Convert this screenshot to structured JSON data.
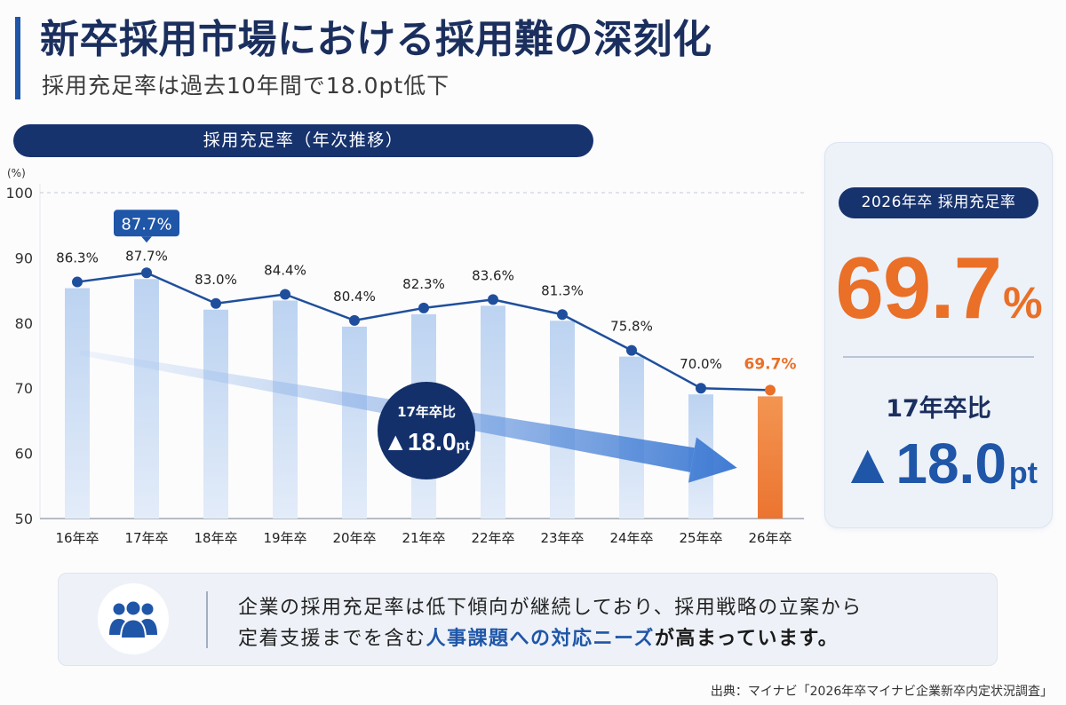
{
  "header": {
    "title": "新卒採用市場における採用難の深刻化",
    "subtitle": "採用充足率は過去10年間で18.0pt低下"
  },
  "chart_data": {
    "type": "bar",
    "overlay": "line",
    "title": "採用充足率（年次推移）",
    "ylabel": "(%)",
    "unit": "%",
    "ylim": [
      50,
      100
    ],
    "yticks": [
      50,
      60,
      70,
      80,
      90,
      100
    ],
    "reference_line": 100,
    "grid": false,
    "legend": "none",
    "categories": [
      "16年卒",
      "17年卒",
      "18年卒",
      "19年卒",
      "20年卒",
      "21年卒",
      "22年卒",
      "23年卒",
      "24年卒",
      "25年卒",
      "26年卒"
    ],
    "series": [
      {
        "values": [
          86.3,
          87.7,
          83.0,
          84.4,
          80.4,
          82.3,
          83.6,
          81.3,
          75.8,
          70.0,
          69.7
        ]
      }
    ],
    "callout_category": "17年卒",
    "current_category": "26年卒",
    "annotation": {
      "label": "17年卒比",
      "value": "▲18.0",
      "unit": "pt"
    },
    "colors": {
      "bars": "#c6daf4",
      "line": "#1f4f9c",
      "highlight": "#ea6f27",
      "callout": "#1f56a8",
      "annotation": "#13306b",
      "trend_arrow": "#2f70cf"
    }
  },
  "summary_card": {
    "badge": "2026年卒 採用充足率",
    "value": "69.7",
    "value_unit": "%",
    "comparison_label": "17年卒比",
    "comparison_value": "▲18.0",
    "comparison_unit": "pt"
  },
  "info_box": {
    "icon": "people-group-icon",
    "line1": "企業の採用充足率は低下傾向が継続しており、採用戦略の立案から",
    "line2_prefix": "定着支援までを含む",
    "line2_highlight": "人事課題への対応ニーズ",
    "line2_suffix": "が高まっています。"
  },
  "source": "出典：マイナビ「2026年卒マイナビ企業新卒内定状況調査」",
  "colors": {
    "navy": "#17336e",
    "blue": "#1f56a8",
    "orange": "#ea6f27",
    "bar": "#c6daf4",
    "card": "#edf2f9",
    "info": "#eef2f8",
    "title": "#1b2f5e"
  }
}
